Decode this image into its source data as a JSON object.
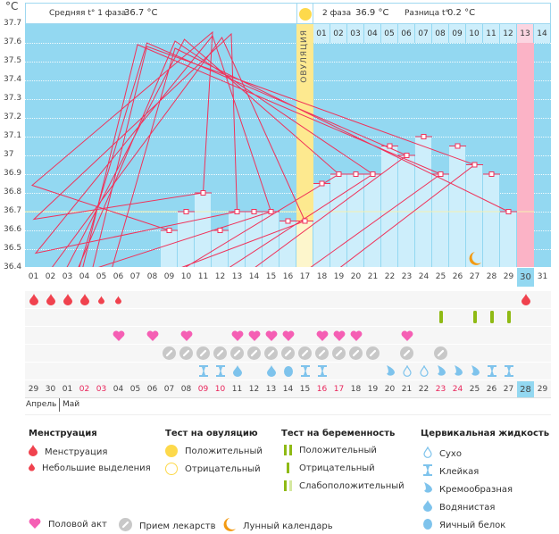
{
  "unit": "°C",
  "header": {
    "phase1_label": "Средняя t° 1 фаза",
    "phase1_value": "36.7 °C",
    "phase2_label": "2 фаза",
    "phase2_value": "36.9 °C",
    "diff_label": "Разница t°",
    "diff_value": "0.2 °C",
    "ovulation_label": "ОВУЛЯЦИЯ"
  },
  "chart_data": {
    "type": "bar",
    "ylabel": "°C",
    "ylim": [
      36.4,
      37.7
    ],
    "yticks": [
      "37.7",
      "37.6",
      "37.5",
      "37.4",
      "37.3",
      "37.2",
      "37.1",
      "37",
      "36.9",
      "36.8",
      "36.7",
      "36.6",
      "36.5",
      "36.4"
    ],
    "days": [
      "01",
      "02",
      "03",
      "04",
      "05",
      "06",
      "07",
      "08",
      "09",
      "10",
      "11",
      "12",
      "13",
      "14",
      "15",
      "16",
      "17",
      "18",
      "19",
      "20",
      "21",
      "22",
      "23",
      "24",
      "25",
      "26",
      "27",
      "28",
      "29",
      "30",
      "31"
    ],
    "temperatures": [
      null,
      null,
      null,
      null,
      null,
      null,
      null,
      null,
      36.6,
      36.7,
      36.8,
      36.6,
      36.7,
      36.7,
      36.7,
      36.65,
      36.65,
      36.85,
      36.9,
      36.9,
      36.9,
      37.05,
      37.0,
      37.1,
      36.9,
      37.05,
      36.95,
      36.9,
      36.7,
      null,
      null
    ],
    "coverline": 36.7,
    "ovulation_day": 17,
    "period_day": 30,
    "cycle_days": [
      "01",
      "02",
      "03",
      "04",
      "05",
      "06",
      "07",
      "08",
      "09",
      "10",
      "11",
      "12",
      "13",
      "14"
    ],
    "cycle_days_start": 18,
    "moon_day": 27
  },
  "rows": {
    "menstruation": {
      "1": "big",
      "2": "big",
      "3": "big",
      "4": "big",
      "5": "small",
      "6": "small",
      "30": "big"
    },
    "pregnancy_test": {
      "25": "neg",
      "27": "neg",
      "28": "neg",
      "29": "neg"
    },
    "intercourse": [
      6,
      8,
      10,
      13,
      14,
      15,
      16,
      18,
      19,
      20,
      23
    ],
    "medication": [
      9,
      10,
      11,
      12,
      13,
      14,
      15,
      16,
      17,
      18,
      19,
      20,
      21,
      23,
      25
    ],
    "fluid": {
      "11": "sticky",
      "12": "sticky",
      "13": "watery",
      "15": "watery",
      "16": "egg",
      "17": "sticky",
      "18": "sticky",
      "22": "creamy",
      "23": "dry",
      "24": "dry",
      "25": "creamy",
      "26": "creamy",
      "27": "creamy",
      "28": "sticky",
      "29": "sticky"
    }
  },
  "calendar": {
    "dates": [
      "29",
      "30",
      "01",
      "02",
      "03",
      "04",
      "05",
      "06",
      "07",
      "08",
      "09",
      "10",
      "11",
      "12",
      "13",
      "14",
      "15",
      "16",
      "17",
      "18",
      "19",
      "20",
      "21",
      "22",
      "23",
      "24",
      "25",
      "26",
      "27",
      "28",
      "29"
    ],
    "weekend": [
      3,
      4,
      10,
      11,
      17,
      18,
      24,
      25
    ],
    "today": 29,
    "month1": "Апрель",
    "month2": "Май"
  },
  "legend": {
    "menstruation_title": "Менструация",
    "menstruation": "Менструация",
    "spotting": "Небольшие выделения",
    "ovulation_title": "Тест на овуляцию",
    "ov_pos": "Положительный",
    "ov_neg": "Отрицательный",
    "pregnancy_title": "Тест на беременность",
    "pr_pos": "Положительный",
    "pr_neg": "Отрицательный",
    "pr_weak": "Слабоположительный",
    "fluid_title": "Цервикальная жидкость",
    "dry": "Сухо",
    "sticky": "Клейкая",
    "creamy": "Кремообразная",
    "watery": "Водянистая",
    "egg": "Яичный белок",
    "intercourse": "Половой акт",
    "medication": "Прием лекарств",
    "moon": "Лунный календарь"
  },
  "colors": {
    "plot": "#93d8f1",
    "bar": "#cdeefb",
    "line": "#f0325a",
    "ovulation": "#fde98f",
    "period": "#fbb3c6",
    "blood": "#f0424e",
    "heart": "#f55fb4",
    "pill": "#c8c8c8",
    "fluid": "#7ec3ec",
    "test": "#8fba14",
    "moon": "#f39a12"
  }
}
